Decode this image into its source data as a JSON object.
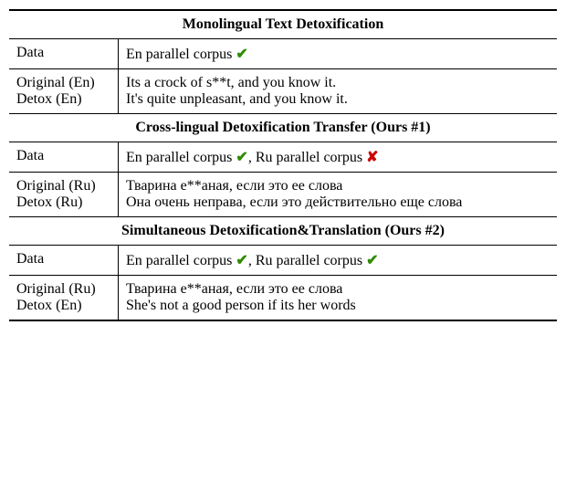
{
  "table": {
    "sections": [
      {
        "header": "Monolingual Text Detoxification",
        "dataRow": {
          "label": "Data",
          "parts": [
            {
              "text": "En parallel corpus ",
              "mark": "check"
            }
          ]
        },
        "exampleRows": [
          {
            "label": "Original (En)",
            "text": "Its a crock of s**t, and you know it."
          },
          {
            "label": "Detox (En)",
            "text": "It's quite unpleasant, and you know it."
          }
        ]
      },
      {
        "header": "Cross-lingual Detoxification Transfer (Ours #1)",
        "dataRow": {
          "label": "Data",
          "parts": [
            {
              "text": "En parallel corpus ",
              "mark": "check"
            },
            {
              "text": ", Ru parallel corpus ",
              "mark": "cross"
            }
          ]
        },
        "exampleRows": [
          {
            "label": "Original (Ru)",
            "text": "Тварина е**аная, если это ее слова"
          },
          {
            "label": "Detox (Ru)",
            "text": "Она очень неправа, если это действительно еще слова"
          }
        ]
      },
      {
        "header": "Simultaneous Detoxification&Translation (Ours #2)",
        "dataRow": {
          "label": "Data",
          "parts": [
            {
              "text": "En parallel corpus ",
              "mark": "check"
            },
            {
              "text": ", Ru parallel corpus ",
              "mark": "check"
            }
          ]
        },
        "exampleRows": [
          {
            "label": "Original (Ru)",
            "text": "Тварина е**аная, если это ее слова"
          },
          {
            "label": "Detox (En)",
            "text": "She's not a good person if its her words"
          }
        ]
      }
    ]
  },
  "marks": {
    "check": "✔",
    "cross": "✘"
  },
  "style": {
    "font_family": "Times New Roman",
    "font_size_pt": 12,
    "check_color": "#2e8b00",
    "cross_color": "#cc0000",
    "border_color": "#000000",
    "background_color": "#ffffff"
  }
}
